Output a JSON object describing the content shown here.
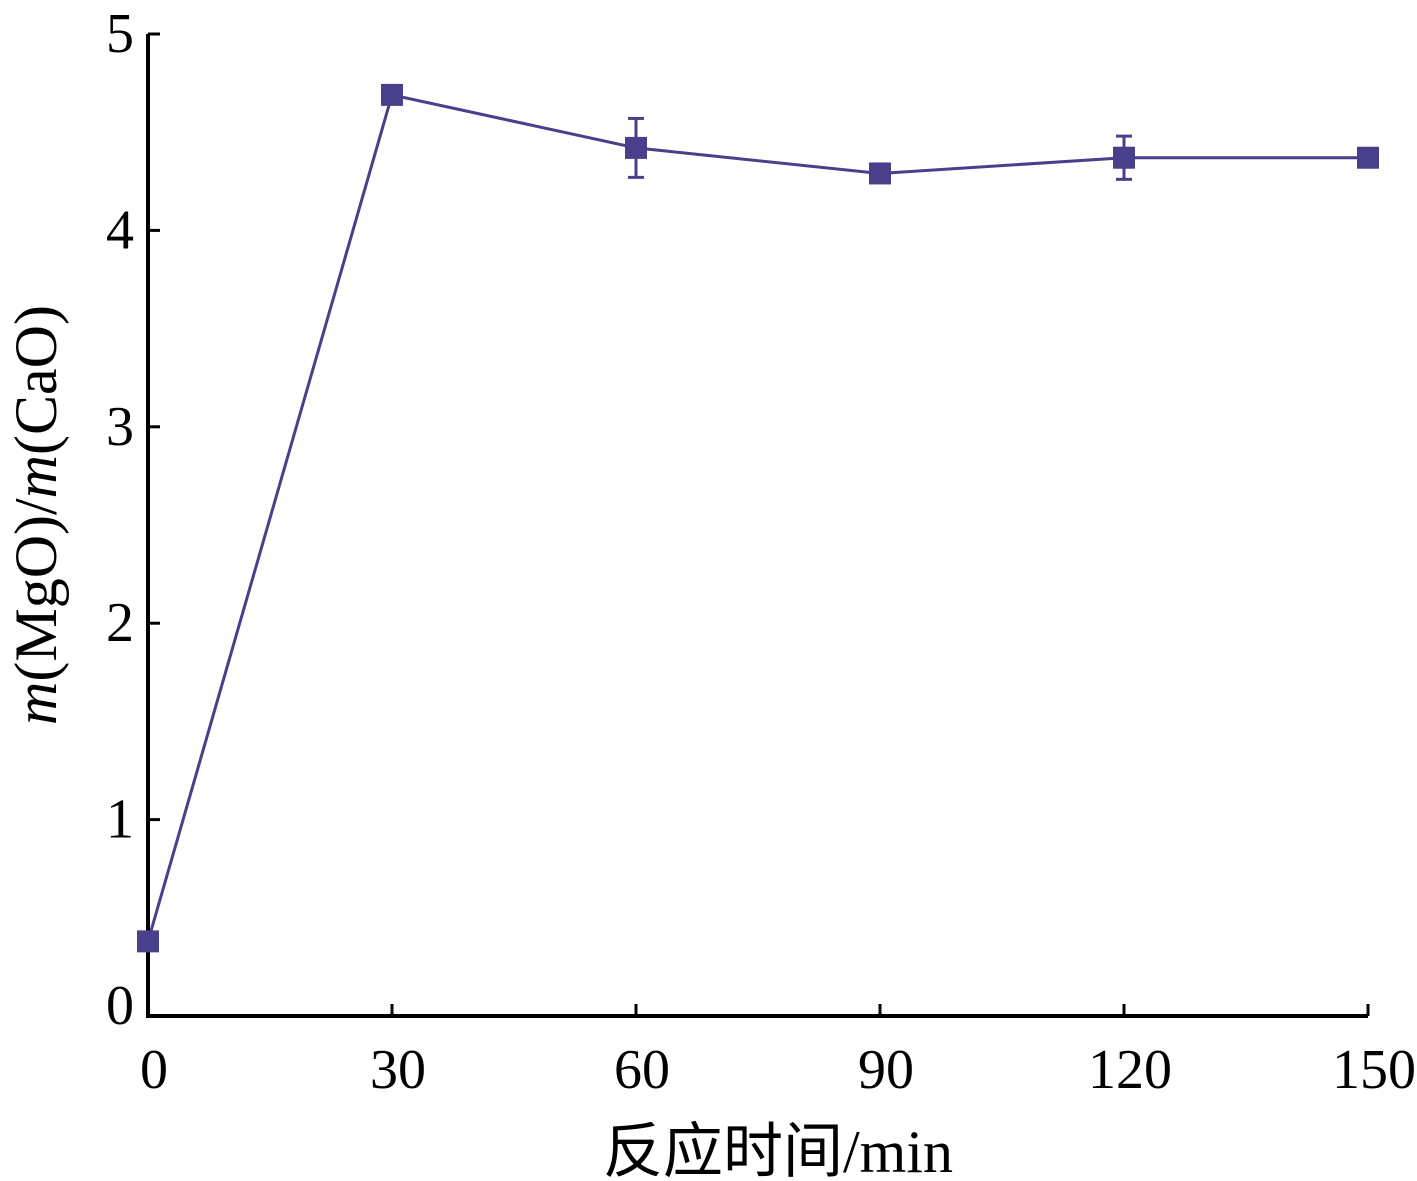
{
  "chart_data": {
    "type": "line",
    "title": "",
    "xlabel": "反应时间/min",
    "ylabel": {
      "parts": [
        {
          "text": "m",
          "italic": true
        },
        {
          "text": "(MgO)/",
          "italic": false
        },
        {
          "text": "m",
          "italic": true
        },
        {
          "text": "(CaO)",
          "italic": false
        }
      ]
    },
    "x_ticks": [
      0,
      30,
      60,
      90,
      120,
      150
    ],
    "y_ticks": [
      0,
      1,
      2,
      3,
      4,
      5
    ],
    "xlim": [
      0,
      150
    ],
    "ylim": [
      0,
      5
    ],
    "grid": false,
    "series": [
      {
        "color": "#4a3f8a",
        "marker": "square",
        "points": [
          {
            "x": 0,
            "y": 0.38,
            "err": 0
          },
          {
            "x": 30,
            "y": 4.69,
            "err": 0
          },
          {
            "x": 60,
            "y": 4.42,
            "err": 0.15
          },
          {
            "x": 90,
            "y": 4.29,
            "err": 0
          },
          {
            "x": 120,
            "y": 4.37,
            "err": 0.11
          },
          {
            "x": 150,
            "y": 4.37,
            "err": 0
          }
        ]
      }
    ]
  }
}
